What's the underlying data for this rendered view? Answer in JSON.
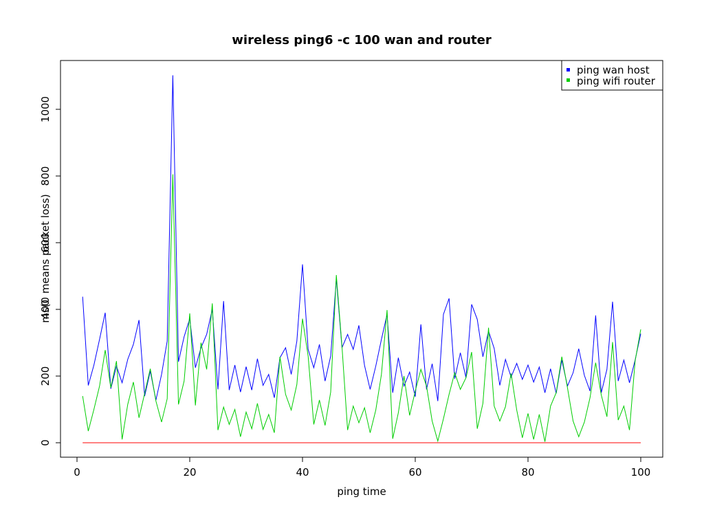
{
  "chart_data": {
    "type": "line",
    "title": "wireless ping6 -c 100 wan and router",
    "xlabel": "ping time",
    "ylabel": "ms(0 means packet loss)",
    "xlim": [
      1,
      100
    ],
    "ylim": [
      0,
      1100
    ],
    "x_ticks": [
      0,
      20,
      40,
      60,
      80,
      100
    ],
    "y_ticks": [
      0,
      200,
      400,
      600,
      800,
      1000
    ],
    "legend_position": "top-right",
    "x": [
      1,
      2,
      3,
      4,
      5,
      6,
      7,
      8,
      9,
      10,
      11,
      12,
      13,
      14,
      15,
      16,
      17,
      18,
      19,
      20,
      21,
      22,
      23,
      24,
      25,
      26,
      27,
      28,
      29,
      30,
      31,
      32,
      33,
      34,
      35,
      36,
      37,
      38,
      39,
      40,
      41,
      42,
      43,
      44,
      45,
      46,
      47,
      48,
      49,
      50,
      51,
      52,
      53,
      54,
      55,
      56,
      57,
      58,
      59,
      60,
      61,
      62,
      63,
      64,
      65,
      66,
      67,
      68,
      69,
      70,
      71,
      72,
      73,
      74,
      75,
      76,
      77,
      78,
      79,
      80,
      81,
      82,
      83,
      84,
      85,
      86,
      87,
      88,
      89,
      90,
      91,
      92,
      93,
      94,
      95,
      96,
      97,
      98,
      99,
      100
    ],
    "series": [
      {
        "name": "ping wan host",
        "color": "#0000ff",
        "values": [
          438,
          172,
          233,
          310,
          390,
          162,
          230,
          180,
          250,
          295,
          368,
          140,
          215,
          128,
          205,
          305,
          1102,
          243,
          318,
          372,
          225,
          285,
          325,
          400,
          160,
          425,
          158,
          233,
          152,
          228,
          158,
          252,
          172,
          205,
          135,
          255,
          285,
          205,
          305,
          535,
          280,
          225,
          295,
          185,
          260,
          492,
          285,
          325,
          280,
          352,
          232,
          160,
          230,
          310,
          385,
          150,
          255,
          170,
          212,
          138,
          355,
          160,
          237,
          125,
          385,
          433,
          192,
          270,
          195,
          415,
          370,
          258,
          335,
          283,
          172,
          250,
          197,
          238,
          190,
          233,
          182,
          227,
          150,
          222,
          148,
          248,
          170,
          210,
          282,
          202,
          155,
          382,
          150,
          220,
          423,
          185,
          248,
          180,
          248,
          327
        ]
      },
      {
        "name": "ping wifi router",
        "color": "#00cd00",
        "values": [
          140,
          35,
          100,
          170,
          278,
          165,
          245,
          10,
          115,
          182,
          75,
          148,
          222,
          125,
          62,
          132,
          805,
          115,
          185,
          388,
          112,
          300,
          220,
          418,
          38,
          107,
          55,
          100,
          18,
          92,
          42,
          118,
          40,
          85,
          30,
          258,
          145,
          98,
          175,
          372,
          260,
          55,
          128,
          52,
          152,
          503,
          290,
          38,
          110,
          60,
          105,
          30,
          98,
          205,
          398,
          12,
          90,
          200,
          82,
          155,
          220,
          170,
          65,
          5,
          72,
          145,
          210,
          160,
          195,
          272,
          42,
          118,
          345,
          110,
          65,
          108,
          208,
          98,
          15,
          88,
          10,
          85,
          3,
          110,
          150,
          258,
          165,
          65,
          18,
          62,
          135,
          240,
          143,
          78,
          302,
          68,
          110,
          38,
          245,
          340
        ]
      },
      {
        "name": "",
        "color": "#ff0000",
        "values": [
          0,
          0,
          0,
          0,
          0,
          0,
          0,
          0,
          0,
          0,
          0,
          0,
          0,
          0,
          0,
          0,
          0,
          0,
          0,
          0,
          0,
          0,
          0,
          0,
          0,
          0,
          0,
          0,
          0,
          0,
          0,
          0,
          0,
          0,
          0,
          0,
          0,
          0,
          0,
          0,
          0,
          0,
          0,
          0,
          0,
          0,
          0,
          0,
          0,
          0,
          0,
          0,
          0,
          0,
          0,
          0,
          0,
          0,
          0,
          0,
          0,
          0,
          0,
          0,
          0,
          0,
          0,
          0,
          0,
          0,
          0,
          0,
          0,
          0,
          0,
          0,
          0,
          0,
          0,
          0,
          0,
          0,
          0,
          0,
          0,
          0,
          0,
          0,
          0,
          0,
          0,
          0,
          0,
          0,
          0,
          0,
          0,
          0,
          0,
          0
        ]
      }
    ]
  }
}
